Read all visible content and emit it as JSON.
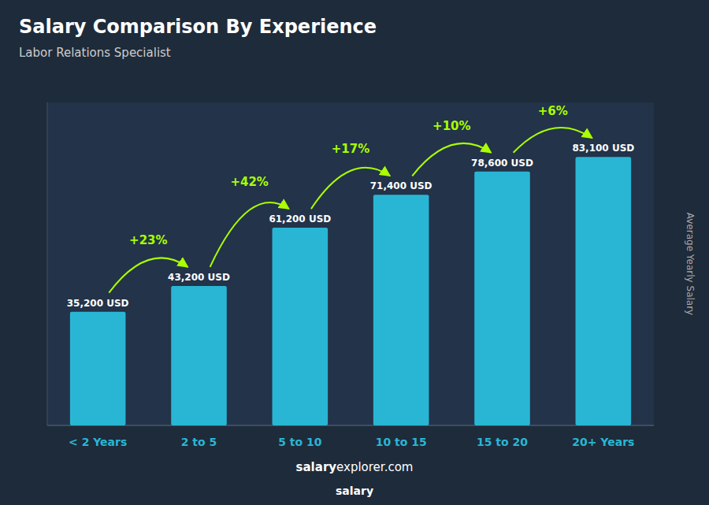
{
  "chart_data": {
    "type": "bar",
    "title": "Salary Comparison By Experience",
    "subtitle": "Labor Relations Specialist",
    "ylabel": "Average Yearly Salary",
    "categories": [
      "< 2 Years",
      "2 to 5",
      "5 to 10",
      "10 to 15",
      "15 to 20",
      "20+ Years"
    ],
    "values": [
      35200,
      43200,
      61200,
      71400,
      78600,
      83100
    ],
    "value_labels": [
      "35,200 USD",
      "43,200 USD",
      "61,200 USD",
      "71,400 USD",
      "78,600 USD",
      "83,100 USD"
    ],
    "change_values": [
      23,
      42,
      17,
      10,
      6
    ],
    "change_labels": [
      "+23%",
      "+42%",
      "+17%",
      "+10%",
      "+6%"
    ],
    "color": "#29b6d4",
    "ylim": [
      0,
      100000
    ],
    "data_labels": true,
    "tick_labels": "x",
    "grid": false,
    "footer": [
      "salary",
      "explorer.com"
    ],
    "annotations": [
      "salary"
    ]
  }
}
